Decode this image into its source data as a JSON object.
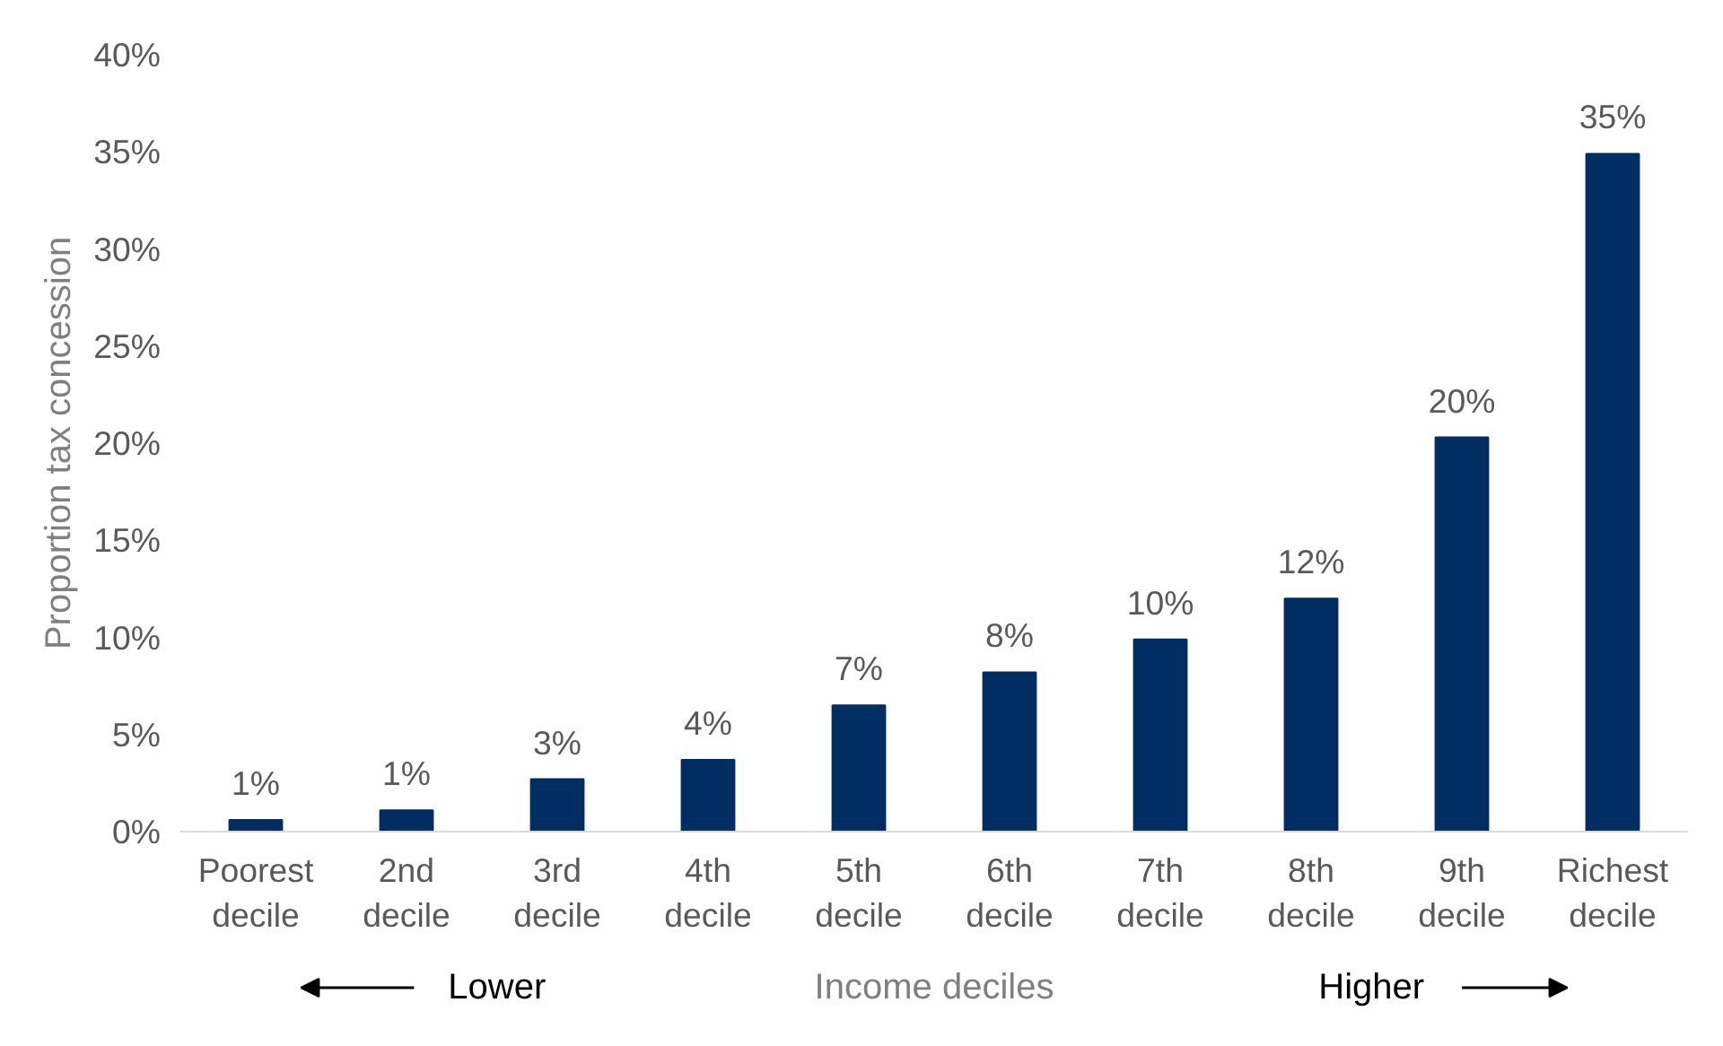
{
  "chart_data": {
    "type": "bar",
    "ylabel": "Proportion tax concession",
    "xlabel": "Income deciles",
    "categories": [
      "Poorest decile",
      "2nd decile",
      "3rd decile",
      "4th decile",
      "5th decile",
      "6th decile",
      "7th decile",
      "8th decile",
      "9th decile",
      "Richest decile"
    ],
    "values": [
      0.6,
      1.1,
      2.7,
      3.7,
      6.5,
      8.2,
      9.9,
      12.0,
      20.3,
      34.9
    ],
    "value_labels": [
      "1%",
      "1%",
      "3%",
      "4%",
      "7%",
      "8%",
      "10%",
      "12%",
      "20%",
      "35%"
    ],
    "color": "#002d62",
    "ylim": [
      0,
      40
    ],
    "yticks": [
      {
        "value": 0,
        "label": "0%"
      },
      {
        "value": 5,
        "label": "5%"
      },
      {
        "value": 10,
        "label": "10%"
      },
      {
        "value": 15,
        "label": "15%"
      },
      {
        "value": 20,
        "label": "20%"
      },
      {
        "value": 25,
        "label": "25%"
      },
      {
        "value": 30,
        "label": "30%"
      },
      {
        "value": 35,
        "label": "35%"
      },
      {
        "value": 40,
        "label": "40%"
      }
    ],
    "annotations": [
      "Lower",
      "Higher"
    ],
    "grid": false
  }
}
